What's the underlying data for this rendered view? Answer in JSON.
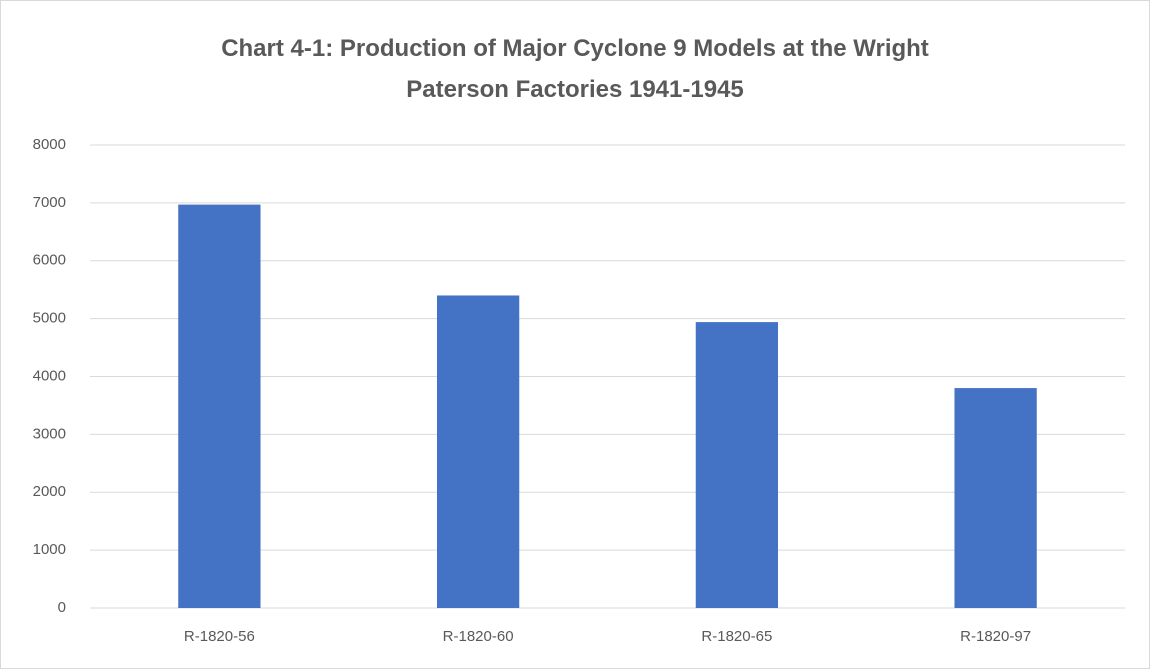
{
  "chart_data": {
    "type": "bar",
    "title": "Chart 4-1: Production of Major Cyclone 9 Models at the Wright Paterson Factories 1941-1945",
    "categories": [
      "R-1820-56",
      "R-1820-60",
      "R-1820-65",
      "R-1820-97"
    ],
    "values": [
      6970,
      5400,
      4940,
      3800
    ],
    "color": "#4472c4",
    "ylim": [
      0,
      8000
    ],
    "yticks": [
      0,
      1000,
      2000,
      3000,
      4000,
      5000,
      6000,
      7000,
      8000
    ],
    "grid": true
  }
}
